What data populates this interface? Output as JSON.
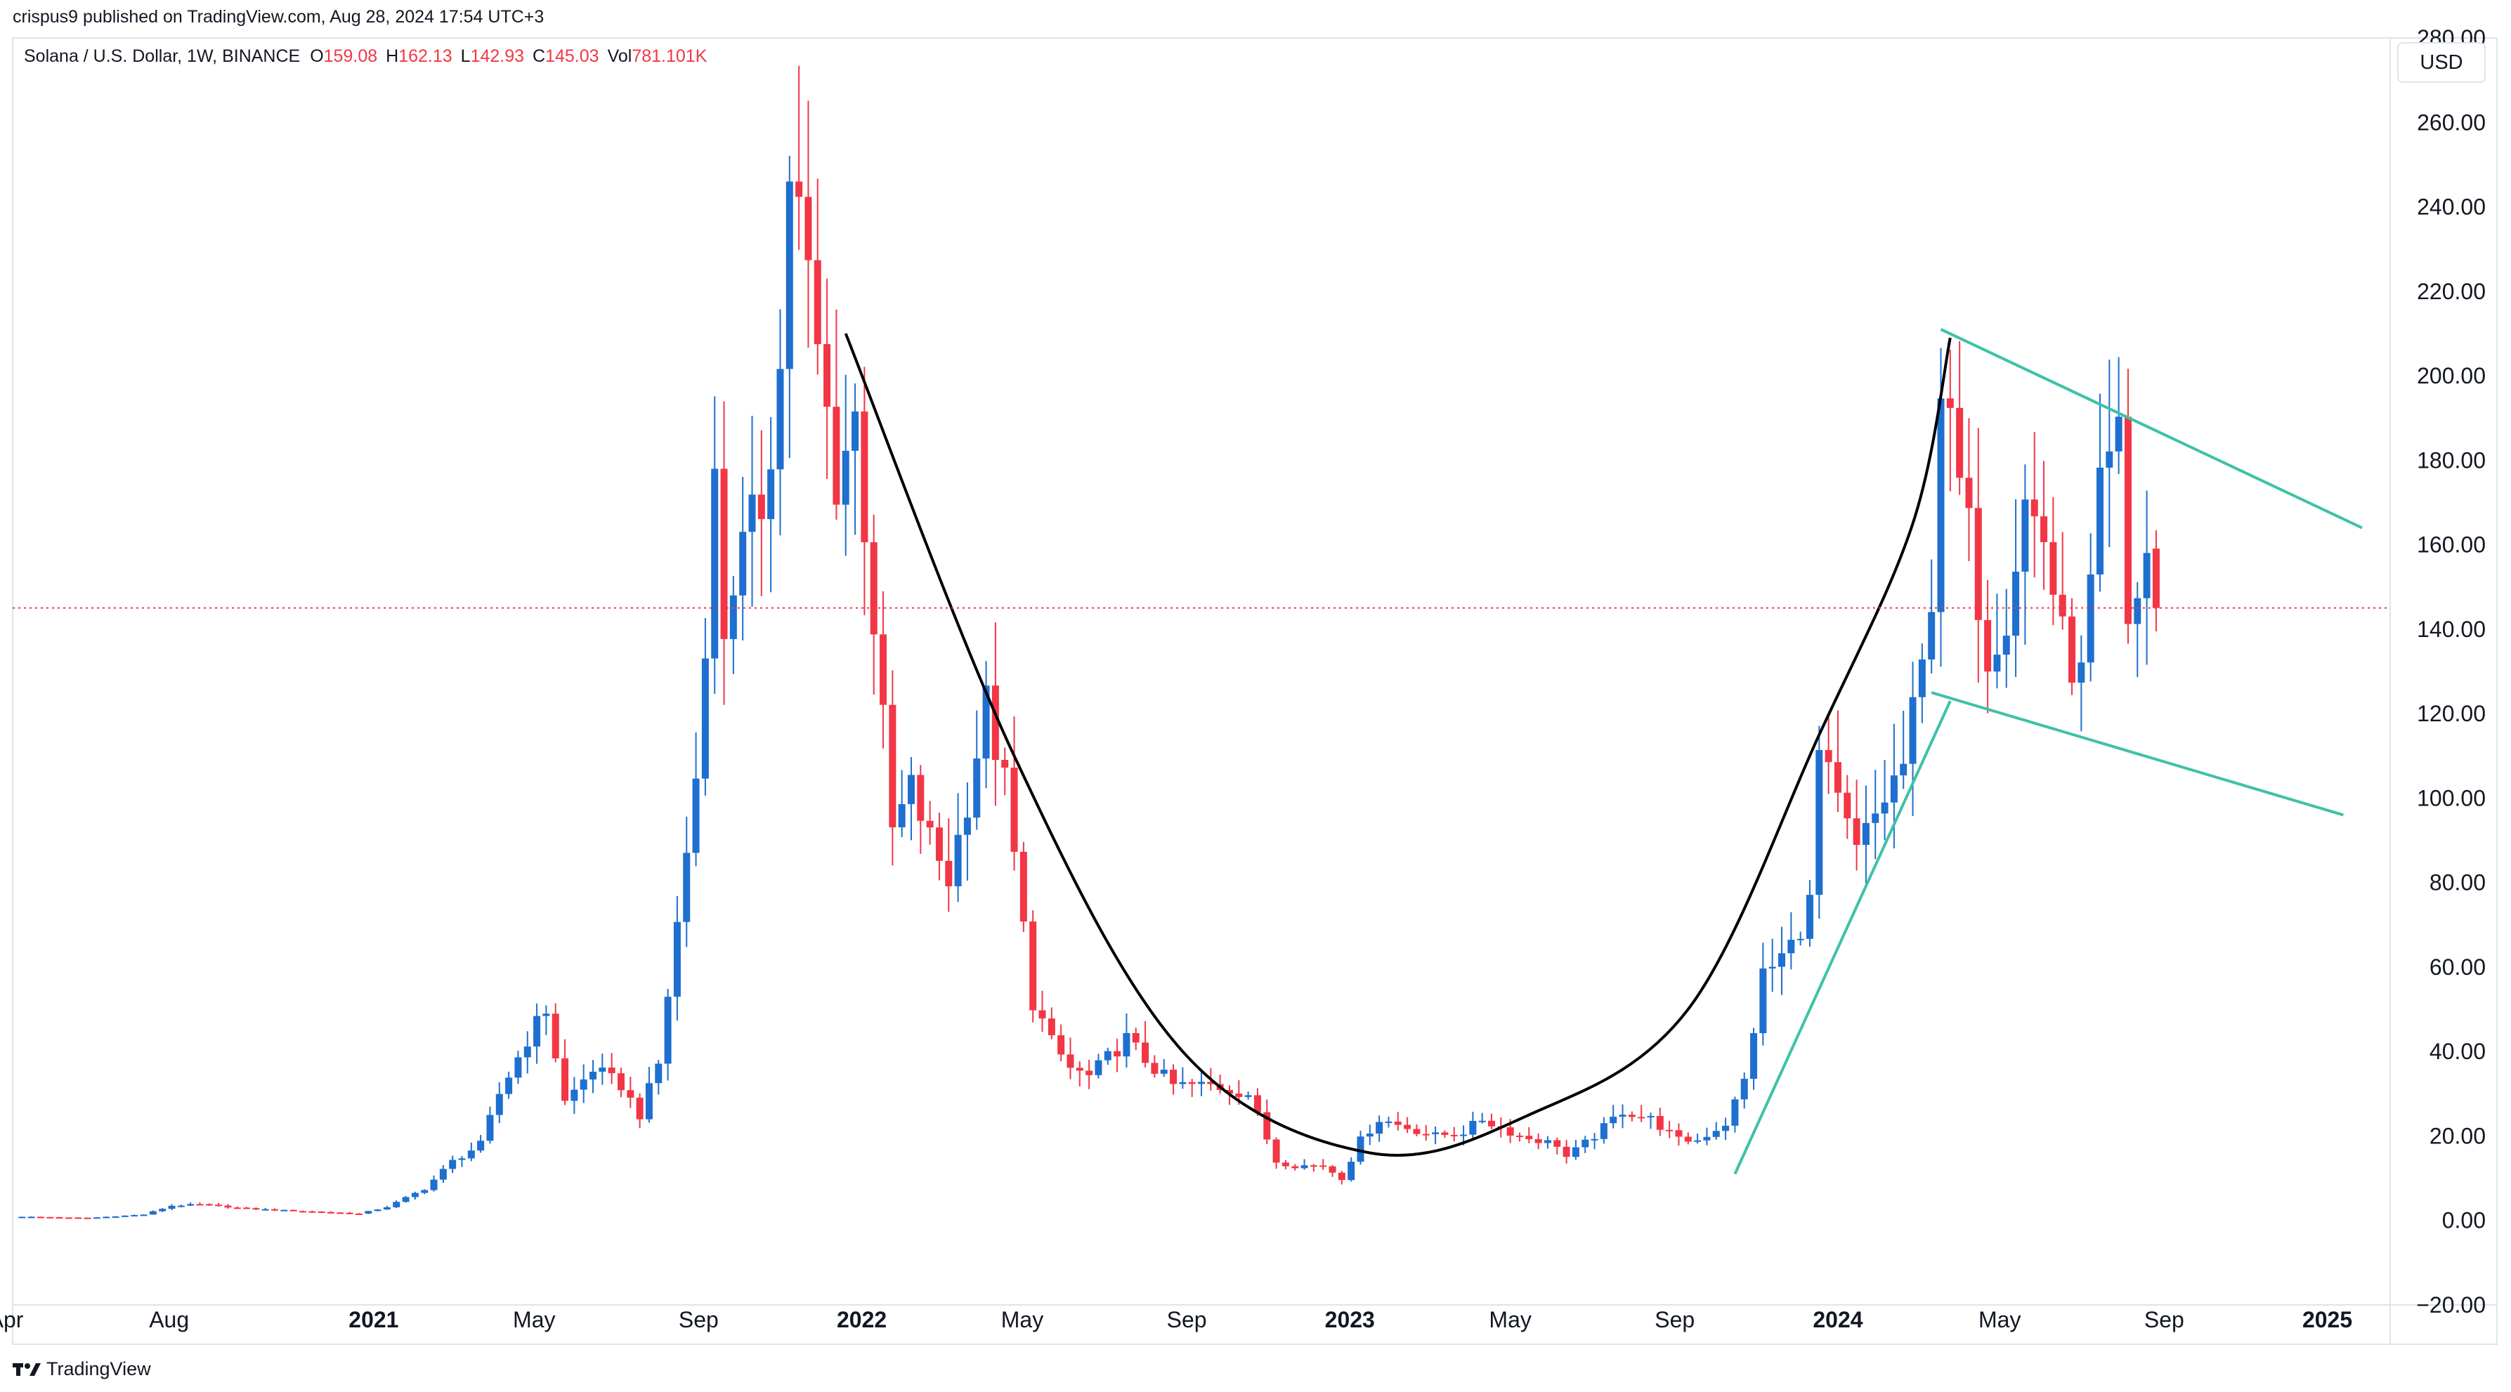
{
  "header": {
    "publish_line": "crispus9 published on TradingView.com, Aug 28, 2024 17:54 UTC+3"
  },
  "legend": {
    "symbol": "Solana / U.S. Dollar, 1W, BINANCE",
    "open_label": "O",
    "open_value": "159.08",
    "high_label": "H",
    "high_value": "162.13",
    "low_label": "L",
    "low_value": "142.93",
    "close_label": "C",
    "close_value": "145.03",
    "vol_label": "Vol",
    "vol_value": "781.101K"
  },
  "currency_button": {
    "label": "USD"
  },
  "footer": {
    "brand": "TradingView",
    "logo_icon": "tradingview-logo-icon"
  },
  "colors": {
    "up": "#1e6fcf",
    "down": "#f23645",
    "cup_curve": "#000000",
    "pattern_lines": "#3fc1a7",
    "current_price_line": "#f23645",
    "axis_text": "#131722",
    "frame": "#e0e3eb"
  },
  "chart_data": {
    "type": "candlestick",
    "interval": "1W",
    "x_start": "2020-04-06",
    "x_end": "2025-02-17",
    "ylim": [
      -20,
      280
    ],
    "y_ticks": [
      -20,
      0,
      20,
      40,
      60,
      80,
      100,
      120,
      140,
      160,
      180,
      200,
      220,
      240,
      260,
      280
    ],
    "y_tick_labels": [
      "−20.00",
      "0.00",
      "20.00",
      "40.00",
      "60.00",
      "80.00",
      "100.00",
      "120.00",
      "140.00",
      "160.00",
      "180.00",
      "200.00",
      "220.00",
      "240.00",
      "260.00",
      "280.00"
    ],
    "x_ticks": [
      {
        "date": "2020-04-01",
        "label": "Apr"
      },
      {
        "date": "2020-08-01",
        "label": "Aug"
      },
      {
        "date": "2021-01-01",
        "label": "2021"
      },
      {
        "date": "2021-05-01",
        "label": "May"
      },
      {
        "date": "2021-09-01",
        "label": "Sep"
      },
      {
        "date": "2022-01-01",
        "label": "2022"
      },
      {
        "date": "2022-05-01",
        "label": "May"
      },
      {
        "date": "2022-09-01",
        "label": "Sep"
      },
      {
        "date": "2023-01-01",
        "label": "2023"
      },
      {
        "date": "2023-05-01",
        "label": "May"
      },
      {
        "date": "2023-09-01",
        "label": "Sep"
      },
      {
        "date": "2024-01-01",
        "label": "2024"
      },
      {
        "date": "2024-05-01",
        "label": "May"
      },
      {
        "date": "2024-09-01",
        "label": "Sep"
      },
      {
        "date": "2025-01-01",
        "label": "2025"
      }
    ],
    "current_price": 145.03,
    "grid": false,
    "weekly_close_anchors": [
      [
        "2020-04-13",
        0.9
      ],
      [
        "2020-06-01",
        0.6
      ],
      [
        "2020-07-13",
        1.4
      ],
      [
        "2020-08-03",
        3.5
      ],
      [
        "2020-08-24",
        3.8
      ],
      [
        "2020-09-28",
        2.8
      ],
      [
        "2020-12-21",
        1.6
      ],
      [
        "2021-01-11",
        3.2
      ],
      [
        "2021-02-08",
        7.5
      ],
      [
        "2021-03-01",
        14
      ],
      [
        "2021-03-22",
        18
      ],
      [
        "2021-04-05",
        30
      ],
      [
        "2021-04-26",
        43
      ],
      [
        "2021-05-10",
        50
      ],
      [
        "2021-05-24",
        28
      ],
      [
        "2021-06-14",
        36
      ],
      [
        "2021-07-05",
        32
      ],
      [
        "2021-07-19",
        25
      ],
      [
        "2021-08-02",
        37
      ],
      [
        "2021-08-16",
        70
      ],
      [
        "2021-08-30",
        105
      ],
      [
        "2021-09-06",
        140
      ],
      [
        "2021-09-13",
        174
      ],
      [
        "2021-09-20",
        140
      ],
      [
        "2021-09-27",
        152
      ],
      [
        "2021-10-18",
        170
      ],
      [
        "2021-11-01",
        201
      ],
      [
        "2021-11-08",
        249
      ],
      [
        "2021-11-15",
        238
      ],
      [
        "2021-11-29",
        205
      ],
      [
        "2021-12-13",
        176
      ],
      [
        "2021-12-27",
        190
      ],
      [
        "2022-01-10",
        142
      ],
      [
        "2022-01-24",
        92
      ],
      [
        "2022-02-07",
        102
      ],
      [
        "2022-02-21",
        90
      ],
      [
        "2022-03-07",
        81
      ],
      [
        "2022-03-21",
        100
      ],
      [
        "2022-04-04",
        122
      ],
      [
        "2022-04-18",
        103
      ],
      [
        "2022-05-09",
        52
      ],
      [
        "2022-05-23",
        42
      ],
      [
        "2022-06-06",
        36
      ],
      [
        "2022-06-20",
        34
      ],
      [
        "2022-07-18",
        43
      ],
      [
        "2022-08-01",
        38
      ],
      [
        "2022-08-22",
        32
      ],
      [
        "2022-09-19",
        32
      ],
      [
        "2022-10-17",
        30
      ],
      [
        "2022-11-07",
        14
      ],
      [
        "2022-11-21",
        13
      ],
      [
        "2022-12-12",
        13
      ],
      [
        "2022-12-26",
        10
      ],
      [
        "2023-01-09",
        19
      ],
      [
        "2023-01-23",
        24
      ],
      [
        "2023-02-13",
        22
      ],
      [
        "2023-03-06",
        20
      ],
      [
        "2023-03-27",
        21
      ],
      [
        "2023-04-10",
        24
      ],
      [
        "2023-05-08",
        20
      ],
      [
        "2023-06-05",
        18
      ],
      [
        "2023-06-12",
        15
      ],
      [
        "2023-07-03",
        20
      ],
      [
        "2023-07-24",
        26
      ],
      [
        "2023-08-14",
        24
      ],
      [
        "2023-09-04",
        19
      ],
      [
        "2023-09-18",
        19
      ],
      [
        "2023-10-09",
        23
      ],
      [
        "2023-10-23",
        33
      ],
      [
        "2023-11-06",
        58
      ],
      [
        "2023-11-13",
        60
      ],
      [
        "2023-11-27",
        65
      ],
      [
        "2023-12-11",
        75
      ],
      [
        "2023-12-18",
        110
      ],
      [
        "2024-01-01",
        98
      ],
      [
        "2024-01-15",
        87
      ],
      [
        "2024-02-05",
        100
      ],
      [
        "2024-02-19",
        108
      ],
      [
        "2024-03-04",
        130
      ],
      [
        "2024-03-11",
        150
      ],
      [
        "2024-03-18",
        199
      ],
      [
        "2024-03-25",
        185
      ],
      [
        "2024-04-08",
        162
      ],
      [
        "2024-04-22",
        135
      ],
      [
        "2024-05-06",
        145
      ],
      [
        "2024-05-20",
        170
      ],
      [
        "2024-06-03",
        162
      ],
      [
        "2024-06-17",
        137
      ],
      [
        "2024-07-01",
        128
      ],
      [
        "2024-07-15",
        170
      ],
      [
        "2024-07-29",
        184
      ],
      [
        "2024-08-05",
        140
      ],
      [
        "2024-08-19",
        158
      ],
      [
        "2024-08-26",
        145.03
      ]
    ],
    "annotations": [
      {
        "type": "curve",
        "name": "cup-curve",
        "points": [
          [
            "2021-12-20",
            210
          ],
          [
            "2022-04-25",
            110
          ],
          [
            "2022-08-29",
            40
          ],
          [
            "2023-01-16",
            16
          ],
          [
            "2023-05-15",
            25
          ],
          [
            "2023-09-11",
            50
          ],
          [
            "2023-12-18",
            115
          ],
          [
            "2024-02-26",
            165
          ],
          [
            "2024-03-25",
            209
          ]
        ]
      },
      {
        "type": "line",
        "name": "flag-upper-line",
        "points": [
          [
            "2024-03-18",
            211
          ],
          [
            "2025-01-27",
            164
          ]
        ]
      },
      {
        "type": "line",
        "name": "flag-lower-line",
        "points": [
          [
            "2024-03-11",
            125
          ],
          [
            "2025-01-13",
            96
          ]
        ]
      },
      {
        "type": "line",
        "name": "pole-line",
        "points": [
          [
            "2023-10-16",
            11
          ],
          [
            "2024-03-25",
            123
          ]
        ]
      }
    ]
  }
}
